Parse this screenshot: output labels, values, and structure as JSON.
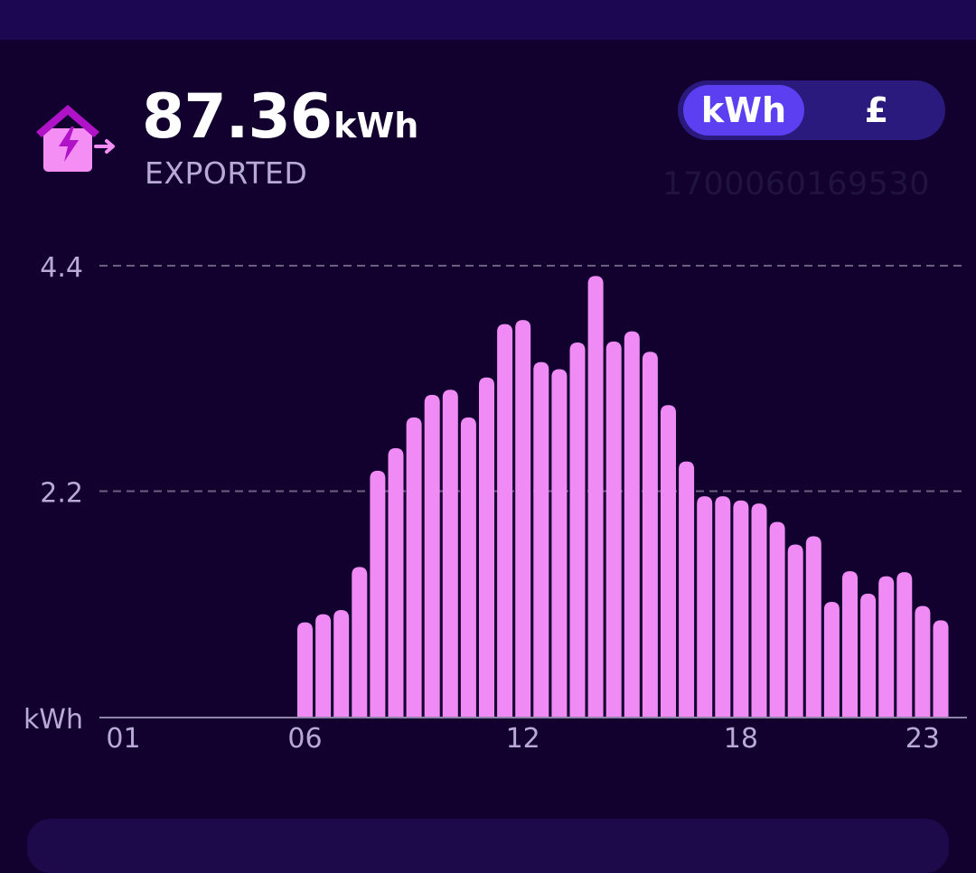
{
  "header": {
    "value": "87.36",
    "unit": "kWh",
    "label": "EXPORTED",
    "icon": "house-export-icon",
    "icon_colors": {
      "roof": "#b012c8",
      "body": "#f48ef4",
      "bolt": "#b012c8",
      "arrow": "#f48ef4"
    }
  },
  "unit_toggle": {
    "options": [
      "kWh",
      "£"
    ],
    "selected": "kWh",
    "active_color": "#5b3ff0",
    "track_color": "#2a1a7e"
  },
  "meter_id": "1700060169530",
  "colors": {
    "background": "#12002e",
    "top_bar": "#1c0752",
    "bar": "#f08af5",
    "gridline": "#6b6080",
    "axis_text": "#b7a9d8"
  },
  "chart_data": {
    "type": "bar",
    "x_ticks": [
      "01",
      "06",
      "12",
      "18",
      "23"
    ],
    "y_ticks": [
      "4.4",
      "2.2"
    ],
    "ylabel": "kWh",
    "ylim": [
      0,
      4.4
    ],
    "grid": true,
    "interval": "half-hourly",
    "values": [
      0,
      0,
      0,
      0,
      0,
      0,
      0,
      0,
      0,
      0,
      0.92,
      1.0,
      1.04,
      1.46,
      2.4,
      2.62,
      2.92,
      3.14,
      3.19,
      2.92,
      3.31,
      3.83,
      3.87,
      3.46,
      3.39,
      3.65,
      4.3,
      3.66,
      3.76,
      3.56,
      3.04,
      2.49,
      2.15,
      2.15,
      2.11,
      2.08,
      1.9,
      1.68,
      1.76,
      1.12,
      1.42,
      1.2,
      1.37,
      1.41,
      1.08,
      0.94
    ]
  }
}
